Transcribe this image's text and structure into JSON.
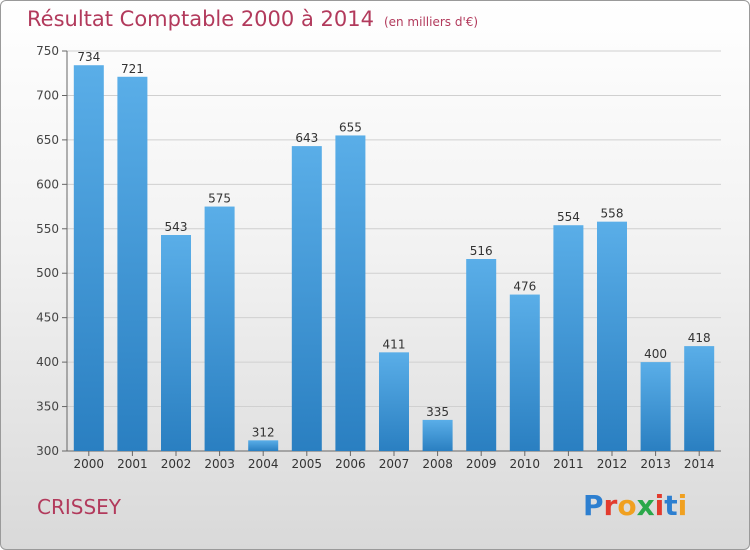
{
  "title": "Résultat Comptable 2000 à 2014",
  "subtitle": "(en milliers d'€)",
  "city": "CRISSEY",
  "logo": "Proxiti",
  "colors": {
    "title": "#b23a5c",
    "bar_top": "#5aaee8",
    "bar_bottom": "#2a7fc1",
    "grid": "#d0d0d0"
  },
  "chart_data": {
    "type": "bar",
    "categories": [
      "2000",
      "2001",
      "2002",
      "2003",
      "2004",
      "2005",
      "2006",
      "2007",
      "2008",
      "2009",
      "2010",
      "2011",
      "2012",
      "2013",
      "2014"
    ],
    "values": [
      734,
      721,
      543,
      575,
      312,
      643,
      655,
      411,
      335,
      516,
      476,
      554,
      558,
      400,
      418
    ],
    "yticks": [
      300,
      350,
      400,
      450,
      500,
      550,
      600,
      650,
      700,
      750
    ],
    "ylim": [
      300,
      750
    ],
    "grid": true
  }
}
